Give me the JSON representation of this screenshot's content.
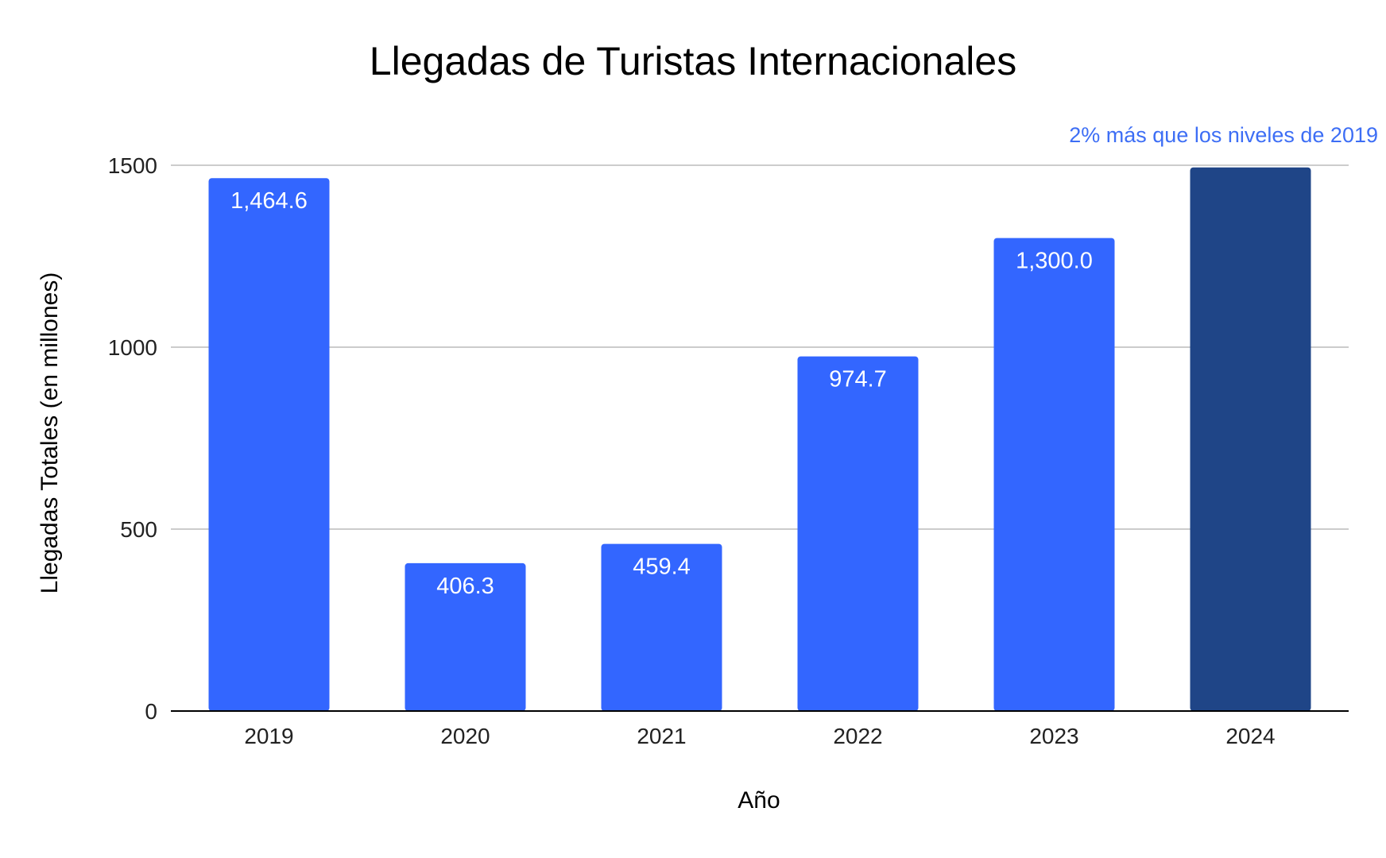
{
  "chart_data": {
    "type": "bar",
    "title": "Llegadas de Turistas Internacionales",
    "xlabel": "Año",
    "ylabel": "Llegadas Totales (en millones)",
    "categories": [
      "2019",
      "2020",
      "2021",
      "2022",
      "2023",
      "2024"
    ],
    "values": [
      1464.6,
      406.3,
      459.4,
      974.7,
      1300.0,
      1494
    ],
    "data_labels": [
      "1,464.6",
      "406.3",
      "459.4",
      "974.7",
      "1,300.0",
      ""
    ],
    "ylim": [
      0,
      1500
    ],
    "yticks": [
      0,
      500,
      1000,
      1500
    ],
    "grid": true,
    "legend": "none",
    "annotation": {
      "text": "2% más que los niveles de 2019",
      "category": "2024"
    },
    "colors": {
      "bar": "#3366ff",
      "highlight_bar": "#1f4587",
      "annotation": "#3d6ef5",
      "grid": "#cccccc",
      "axis": "#000000"
    },
    "highlight_category": "2024"
  }
}
